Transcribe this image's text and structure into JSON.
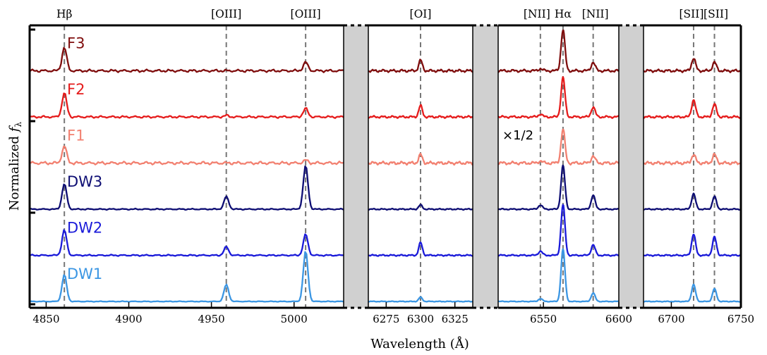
{
  "chart_data": {
    "type": "line",
    "xlabel": "Wavelength (Å)",
    "ylabel": "Normalized f_λ",
    "ylabel_display": {
      "prefix": "Normalized ",
      "var": "f",
      "sub": "λ"
    },
    "panels": [
      {
        "xlim": [
          4840,
          5030
        ],
        "ticks": [
          4850,
          4900,
          4950,
          5000
        ]
      },
      {
        "xlim": [
          6262,
          6338
        ],
        "ticks": [
          6275,
          6300,
          6325
        ]
      },
      {
        "xlim": [
          6520,
          6600
        ],
        "ticks": [
          6550,
          6600
        ]
      },
      {
        "xlim": [
          6680,
          6750
        ],
        "ticks": [
          6700,
          6750
        ]
      }
    ],
    "emission_lines": [
      {
        "name": "Hβ",
        "wavelength": 4861
      },
      {
        "name": "[OIII]",
        "wavelength": 4959
      },
      {
        "name": "[OIII]",
        "wavelength": 5007
      },
      {
        "name": "[OI]",
        "wavelength": 6300
      },
      {
        "name": "[NII]",
        "wavelength": 6548
      },
      {
        "name": "Hα",
        "wavelength": 6563
      },
      {
        "name": "[NII]",
        "wavelength": 6583
      },
      {
        "name": "[SII]",
        "wavelength": 6716
      },
      {
        "name": "[SII]",
        "wavelength": 6731
      }
    ],
    "annotation": "×1/2",
    "series": [
      {
        "name": "F3",
        "color": "#7f0d0d",
        "offset": 5,
        "peaks": {
          "4861": 0.33,
          "4959": 0.0,
          "5007": 0.12,
          "6300": 0.15,
          "6548": 0.03,
          "6563": 0.58,
          "6583": 0.12,
          "6716": 0.18,
          "6731": 0.12
        },
        "noise": 0.022
      },
      {
        "name": "F2",
        "color": "#e51b1b",
        "offset": 4,
        "peaks": {
          "4861": 0.34,
          "4959": 0.02,
          "5007": 0.12,
          "6300": 0.16,
          "6548": 0.04,
          "6563": 0.56,
          "6583": 0.14,
          "6716": 0.24,
          "6731": 0.18
        },
        "noise": 0.018
      },
      {
        "name": "F1",
        "color": "#f28070",
        "offset": 3,
        "peaks": {
          "4861": 0.24,
          "4959": 0.0,
          "5007": 0.04,
          "6300": 0.12,
          "6548": 0.03,
          "6563": 0.48,
          "6583": 0.1,
          "6716": 0.12,
          "6731": 0.12
        },
        "noise": 0.025
      },
      {
        "name": "DW3",
        "color": "#0d0d73",
        "offset": 2,
        "peaks": {
          "4861": 0.36,
          "4959": 0.18,
          "5007": 0.62,
          "6300": 0.06,
          "6548": 0.06,
          "6563": 0.62,
          "6583": 0.2,
          "6716": 0.22,
          "6731": 0.18
        },
        "noise": 0.01
      },
      {
        "name": "DW2",
        "color": "#1a1ad9",
        "offset": 1,
        "peaks": {
          "4861": 0.36,
          "4959": 0.12,
          "5007": 0.3,
          "6300": 0.18,
          "6548": 0.06,
          "6563": 0.72,
          "6583": 0.15,
          "6716": 0.3,
          "6731": 0.26
        },
        "noise": 0.012
      },
      {
        "name": "DW1",
        "color": "#3b96e3",
        "offset": 0,
        "peaks": {
          "4861": 0.38,
          "4959": 0.24,
          "5007": 0.72,
          "6300": 0.06,
          "6548": 0.04,
          "6563": 0.74,
          "6583": 0.12,
          "6716": 0.24,
          "6731": 0.18
        },
        "noise": 0.006
      }
    ]
  }
}
